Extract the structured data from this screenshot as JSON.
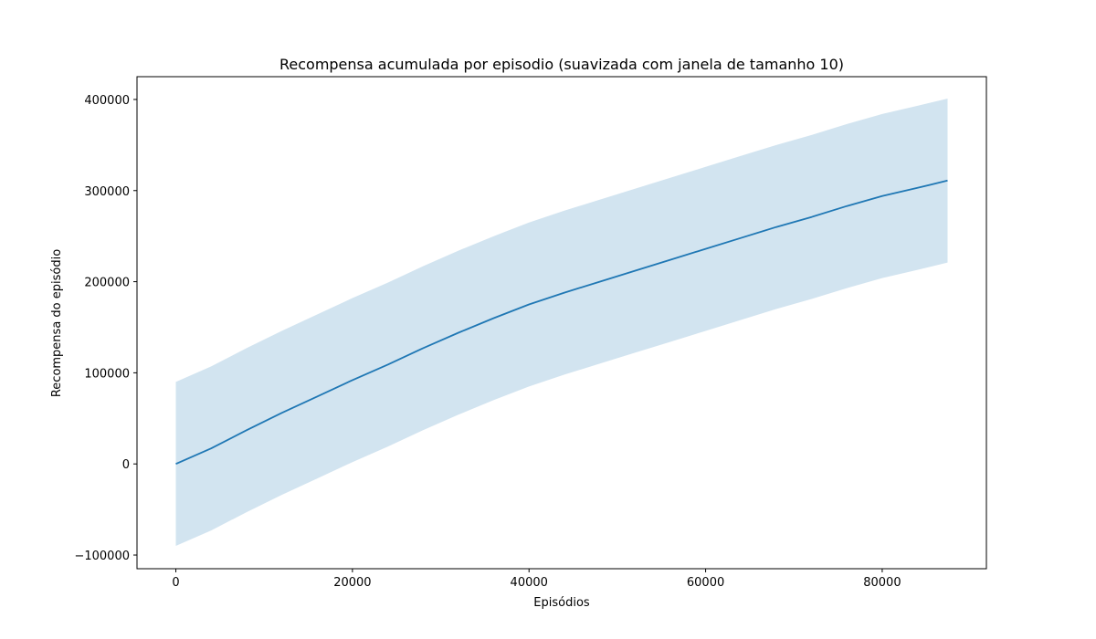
{
  "chart_data": {
    "type": "line",
    "title": "Recompensa acumulada por episodio (suavizada com janela de tamanho 10)",
    "xlabel": "Episódios",
    "ylabel": "Recompensa do episódio",
    "xlim": [
      -4400,
      91800
    ],
    "ylim": [
      -115000,
      425000
    ],
    "x_ticks": [
      0,
      20000,
      40000,
      60000,
      80000
    ],
    "x_tick_labels": [
      "0",
      "20000",
      "40000",
      "60000",
      "80000"
    ],
    "y_ticks": [
      -100000,
      0,
      100000,
      200000,
      300000,
      400000
    ],
    "y_tick_labels": [
      "−100000",
      "0",
      "100000",
      "200000",
      "300000",
      "400000"
    ],
    "grid": false,
    "legend": "none",
    "series": [
      {
        "color": "#1f77b4",
        "band_color": "#1f77b4",
        "band_opacity": 0.2,
        "x": [
          0,
          4000,
          8000,
          12000,
          16000,
          20000,
          24000,
          28000,
          32000,
          36000,
          40000,
          44000,
          48000,
          52000,
          56000,
          60000,
          64000,
          68000,
          72000,
          76000,
          80000,
          84000,
          87400
        ],
        "y": [
          0,
          17000,
          37000,
          56000,
          74000,
          92000,
          109000,
          127000,
          144000,
          160000,
          175000,
          188000,
          200000,
          212000,
          224000,
          236000,
          248000,
          260000,
          271000,
          283000,
          294000,
          303000,
          311000
        ],
        "lower": [
          -90000,
          -73000,
          -53000,
          -34000,
          -16000,
          2000,
          19000,
          37000,
          54000,
          70000,
          85000,
          98000,
          110000,
          122000,
          134000,
          146000,
          158000,
          170000,
          181000,
          193000,
          204000,
          213000,
          221000
        ],
        "upper": [
          90000,
          107000,
          127000,
          146000,
          164000,
          182000,
          199000,
          217000,
          234000,
          250000,
          265000,
          278000,
          290000,
          302000,
          314000,
          326000,
          338000,
          350000,
          361000,
          373000,
          384000,
          393000,
          401000
        ]
      }
    ]
  }
}
